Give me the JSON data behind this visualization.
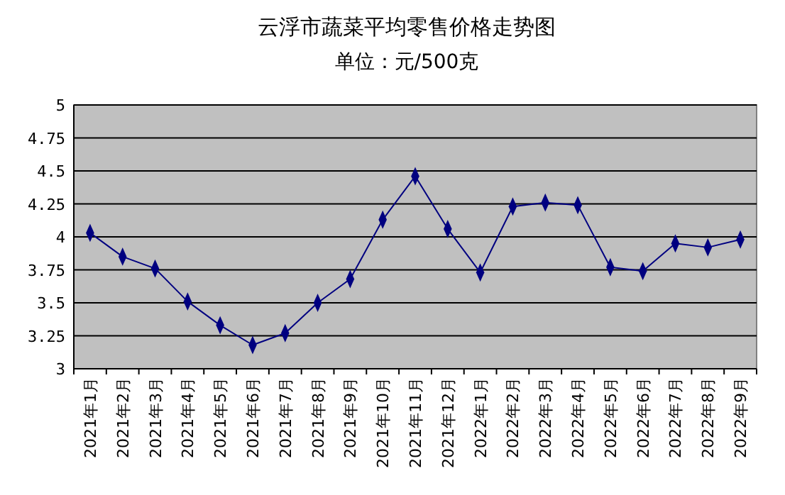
{
  "chart_data": {
    "type": "line",
    "title": "云浮市蔬菜平均零售价格走势图",
    "subtitle": "单位：元/500克",
    "categories": [
      "2021年1月",
      "2021年2月",
      "2021年3月",
      "2021年4月",
      "2021年5月",
      "2021年6月",
      "2021年7月",
      "2021年8月",
      "2021年9月",
      "2021年10月",
      "2021年11月",
      "2021年12月",
      "2022年1月",
      "2022年2月",
      "2022年3月",
      "2022年4月",
      "2022年5月",
      "2022年6月",
      "2022年7月",
      "2022年8月",
      "2022年9月"
    ],
    "series": [
      {
        "color": "#000080",
        "values": [
          4.03,
          3.85,
          3.76,
          3.51,
          3.33,
          3.18,
          3.27,
          3.5,
          3.68,
          4.13,
          4.46,
          4.06,
          3.73,
          4.23,
          4.26,
          4.24,
          3.77,
          3.74,
          3.95,
          3.92,
          3.98
        ]
      }
    ],
    "ylim": [
      3,
      5
    ],
    "yticks": [
      3,
      3.25,
      3.5,
      3.75,
      4,
      4.25,
      4.5,
      4.75,
      5
    ],
    "grid": "y",
    "marker": "diamond",
    "line_style": "solid"
  }
}
